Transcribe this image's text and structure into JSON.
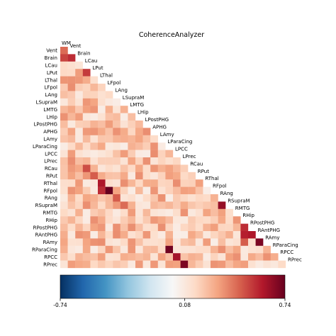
{
  "chart_data": {
    "type": "heatmap",
    "title": "CoherenceAnalyzer",
    "layout": "lower-triangle (diagonal excluded)",
    "labels": [
      "WM",
      "Vent",
      "Brain",
      "LCau",
      "LPut",
      "LThal",
      "LFpol",
      "LAng",
      "LSupraM",
      "LMTG",
      "LHip",
      "LPostPHG",
      "APHG",
      "LAmy",
      "LParaCing",
      "LPCC",
      "LPrec",
      "RCau",
      "RPut",
      "RThal",
      "RFpol",
      "RAng",
      "RSupraM",
      "RMTG",
      "RHip",
      "RPostPHG",
      "RAntPHG",
      "RAmy",
      "RParaCing",
      "RPCC",
      "RPrec"
    ],
    "row_labels": [
      "Vent",
      "Brain",
      "LCau",
      "LPut",
      "LThal",
      "LFpol",
      "LAng",
      "LSupraM",
      "LMTG",
      "LHip",
      "LPostPHG",
      "APHG",
      "LAmy",
      "LParaCing",
      "LPCC",
      "LPrec",
      "RCau",
      "RPut",
      "RThal",
      "RFpol",
      "RAng",
      "RSupraM",
      "RMTG",
      "RHip",
      "RPostPHG",
      "RAntPHG",
      "RAmy",
      "RParaCing",
      "RPCC",
      "RPrec"
    ],
    "colormap": "RdBu_r",
    "colorbar": {
      "min": -0.74,
      "max": 0.74,
      "ticks": [
        -0.74,
        0.08,
        0.74
      ],
      "tick_labels": [
        "-0.74",
        "0.08",
        "0.74"
      ]
    },
    "grid": false,
    "strong_cells": [
      {
        "row": "Vent",
        "col": "WM",
        "value": 0.42
      },
      {
        "row": "Brain",
        "col": "WM",
        "value": 0.5
      },
      {
        "row": "Brain",
        "col": "Vent",
        "value": 0.55
      },
      {
        "row": "LPut",
        "col": "LCau",
        "value": 0.52
      },
      {
        "row": "RCau",
        "col": "LCau",
        "value": 0.48
      },
      {
        "row": "RPut",
        "col": "LPut",
        "value": 0.45
      },
      {
        "row": "RThal",
        "col": "LThal",
        "value": 0.6
      },
      {
        "row": "RFpol",
        "col": "LFpol",
        "value": 0.74
      },
      {
        "row": "RFpol",
        "col": "LThal",
        "value": 0.55
      },
      {
        "row": "RAng",
        "col": "LAng",
        "value": 0.45
      },
      {
        "row": "RSupraM",
        "col": "LSupraM",
        "value": 0.42
      },
      {
        "row": "RSupraM",
        "col": "RAng",
        "value": 0.65
      },
      {
        "row": "RPostPHG",
        "col": "RHip",
        "value": 0.55
      },
      {
        "row": "RAntPHG",
        "col": "RHip",
        "value": 0.58
      },
      {
        "row": "RAntPHG",
        "col": "RPostPHG",
        "value": 0.6
      },
      {
        "row": "RAmy",
        "col": "RHip",
        "value": 0.45
      },
      {
        "row": "RAmy",
        "col": "RAntPHG",
        "value": 0.7
      },
      {
        "row": "RParaCing",
        "col": "LParaCing",
        "value": 0.72
      },
      {
        "row": "RPCC",
        "col": "LPCC",
        "value": 0.62
      },
      {
        "row": "RPrec",
        "col": "LPrec",
        "value": 0.7
      }
    ],
    "typical_value_range": [
      0.05,
      0.35
    ]
  }
}
